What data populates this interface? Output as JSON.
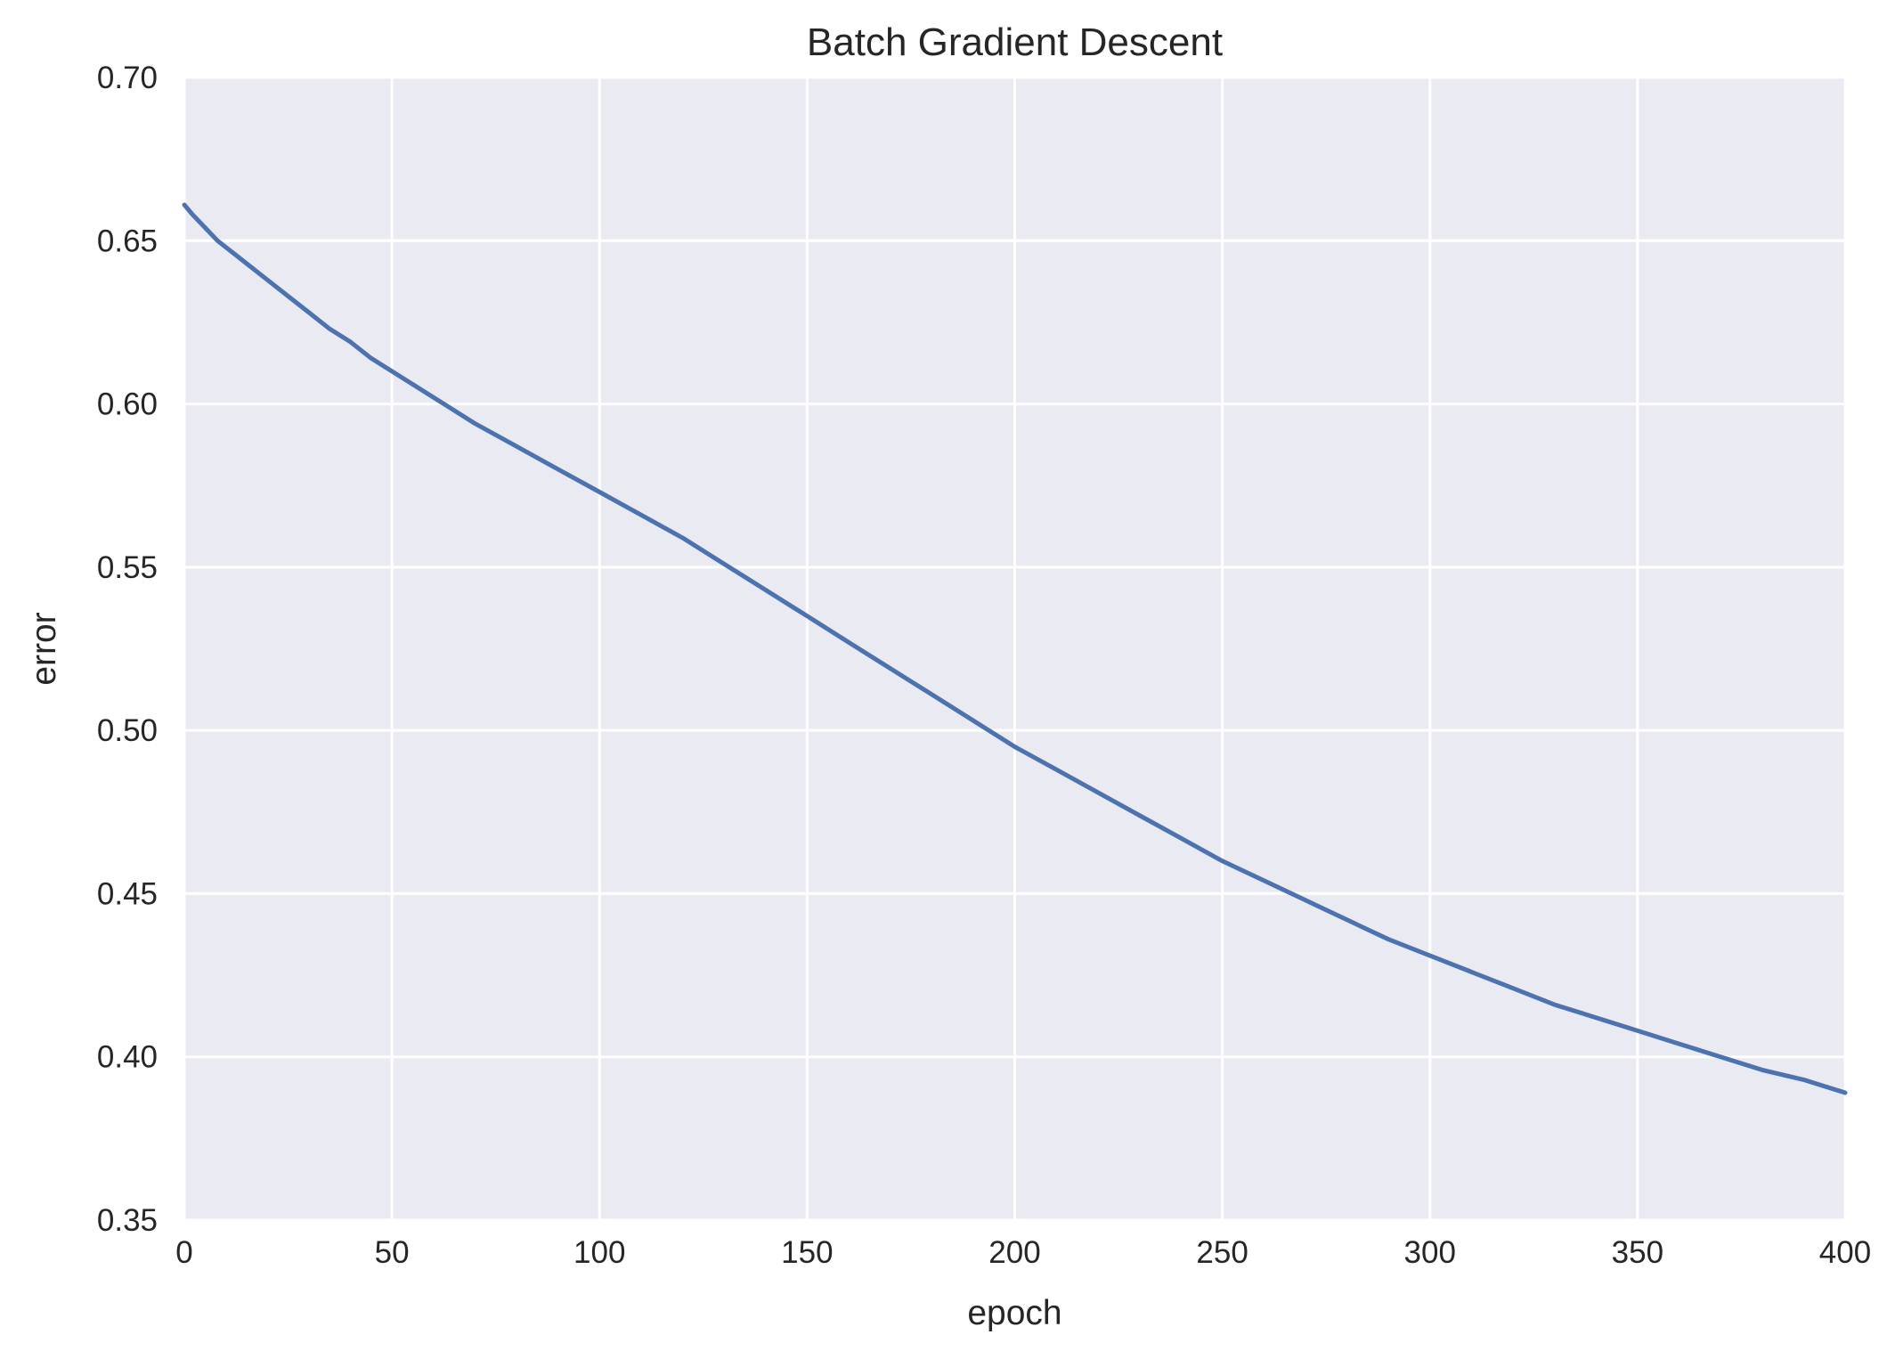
{
  "chart_data": {
    "type": "line",
    "title": "Batch Gradient Descent",
    "xlabel": "epoch",
    "ylabel": "error",
    "xlim": [
      0,
      400
    ],
    "ylim": [
      0.35,
      0.7
    ],
    "xticks": [
      0,
      50,
      100,
      150,
      200,
      250,
      300,
      350,
      400
    ],
    "xtick_labels": [
      "0",
      "50",
      "100",
      "150",
      "200",
      "250",
      "300",
      "350",
      "400"
    ],
    "yticks": [
      0.35,
      0.4,
      0.45,
      0.5,
      0.55,
      0.6,
      0.65,
      0.7
    ],
    "ytick_labels": [
      "0.35",
      "0.40",
      "0.45",
      "0.50",
      "0.55",
      "0.60",
      "0.65",
      "0.70"
    ],
    "grid": true,
    "colors": {
      "plot_background": "#eaeaf2",
      "grid": "#ffffff",
      "line": "#4c72b0",
      "text": "#262626"
    },
    "series": [
      {
        "x": [
          0,
          2,
          5,
          8,
          12,
          16,
          20,
          25,
          30,
          35,
          40,
          45,
          50,
          60,
          70,
          80,
          90,
          100,
          110,
          120,
          130,
          140,
          150,
          160,
          170,
          180,
          190,
          200,
          210,
          220,
          230,
          240,
          250,
          260,
          270,
          280,
          290,
          300,
          310,
          320,
          330,
          340,
          350,
          360,
          370,
          380,
          390,
          400
        ],
        "y": [
          0.661,
          0.658,
          0.654,
          0.65,
          0.646,
          0.642,
          0.638,
          0.633,
          0.628,
          0.623,
          0.619,
          0.614,
          0.61,
          0.602,
          0.594,
          0.587,
          0.58,
          0.573,
          0.566,
          0.559,
          0.551,
          0.543,
          0.535,
          0.527,
          0.519,
          0.511,
          0.503,
          0.495,
          0.488,
          0.481,
          0.474,
          0.467,
          0.46,
          0.454,
          0.448,
          0.442,
          0.436,
          0.431,
          0.426,
          0.421,
          0.416,
          0.412,
          0.408,
          0.404,
          0.4,
          0.396,
          0.393,
          0.389
        ]
      }
    ]
  }
}
